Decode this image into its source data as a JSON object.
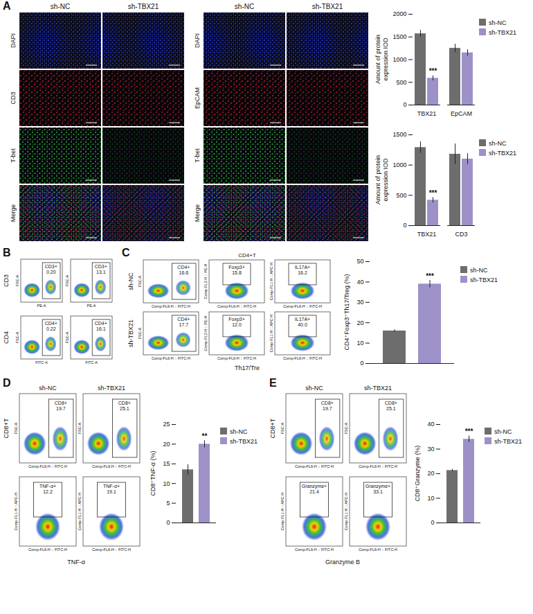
{
  "chart_data": [
    {
      "type": "bar",
      "categories": [
        "TBX21",
        "EpCAM"
      ],
      "series": [
        {
          "name": "sh-NC",
          "color": "#6d6d6d",
          "values": [
            1570,
            1250
          ],
          "errors": [
            75,
            90
          ],
          "significance": [
            null,
            null
          ]
        },
        {
          "name": "sh-TBX21",
          "color": "#9d91c8",
          "values": [
            590,
            1150
          ],
          "errors": [
            55,
            70
          ],
          "significance": [
            "***",
            null
          ]
        }
      ],
      "ylabel": "Amount of protein expression IOD",
      "ylim": [
        0,
        2000
      ],
      "yticks": [
        0,
        500,
        1000,
        1500,
        2000
      ],
      "grid": false,
      "legend": "right"
    },
    {
      "type": "bar",
      "categories": [
        "TBX21",
        "CD3"
      ],
      "series": [
        {
          "name": "sh-NC",
          "color": "#6d6d6d",
          "values": [
            1290,
            1180
          ],
          "errors": [
            95,
            170
          ],
          "significance": [
            null,
            null
          ]
        },
        {
          "name": "sh-TBX21",
          "color": "#9d91c8",
          "values": [
            420,
            1100
          ],
          "errors": [
            45,
            90
          ],
          "significance": [
            "***",
            null
          ]
        }
      ],
      "ylabel": "Amount of protein expression IOD",
      "ylim": [
        0,
        1500
      ],
      "yticks": [
        0,
        500,
        1000,
        1500
      ],
      "grid": false,
      "legend": "right"
    },
    {
      "type": "bar",
      "categories": [
        "sh-NC",
        "sh-TBX21"
      ],
      "values": [
        16,
        39
      ],
      "errors": [
        0.6,
        1.8
      ],
      "significance": [
        null,
        "***"
      ],
      "colors": [
        "#6d6d6d",
        "#9d91c8"
      ],
      "ylabel": "CD4⁺Foxp3⁺Th17/Treg (%)",
      "ylim": [
        0,
        50
      ],
      "yticks": [
        0,
        10,
        20,
        30,
        40,
        50
      ],
      "grid": false,
      "legend": "right",
      "tick_labels": "y"
    },
    {
      "type": "bar",
      "categories": [
        "sh-NC",
        "sh-TBX21"
      ],
      "values": [
        13.5,
        20
      ],
      "errors": [
        1.3,
        0.9
      ],
      "significance": [
        null,
        "**"
      ],
      "colors": [
        "#6d6d6d",
        "#9d91c8"
      ],
      "ylabel": "CD8⁺TNF-α (%)",
      "ylim": [
        0,
        25
      ],
      "yticks": [
        0,
        5,
        10,
        15,
        20,
        25
      ],
      "grid": false,
      "legend": "right",
      "tick_labels": "y"
    },
    {
      "type": "bar",
      "categories": [
        "sh-NC",
        "sh-TBX21"
      ],
      "values": [
        21.3,
        34
      ],
      "errors": [
        0.5,
        1.3
      ],
      "significance": [
        null,
        "***"
      ],
      "colors": [
        "#6d6d6d",
        "#9d91c8"
      ],
      "ylabel": "CD8⁺Granzyme (%)",
      "ylim": [
        0,
        40
      ],
      "yticks": [
        0,
        10,
        20,
        30,
        40
      ],
      "grid": false,
      "legend": "right",
      "tick_labels": "y"
    }
  ],
  "panels": {
    "A": {
      "letter": "A",
      "image_groups": [
        {
          "columns": [
            "sh-NC",
            "sh-TBX21"
          ],
          "rows": [
            "DAPI",
            "CD3",
            "T-bet",
            "Merge"
          ]
        },
        {
          "columns": [
            "sh-NC",
            "sh-TBX21"
          ],
          "rows": [
            "DAPI",
            "EpCAM",
            "T-bet",
            "Merge"
          ]
        }
      ]
    },
    "B": {
      "letter": "B",
      "rows": [
        {
          "label": "CD3",
          "plots": [
            {
              "x_label": "PE-A",
              "y_label": "FSC-A",
              "gate": "CD3+",
              "value": 0.2,
              "value_label": "0.20"
            },
            {
              "x_label": "PE-A",
              "y_label": "FSC-A",
              "gate": "CD3+",
              "value": 13.1
            }
          ]
        },
        {
          "label": "CD4",
          "plots": [
            {
              "x_label": "FITC-A",
              "y_label": "FSC-A",
              "gate": "CD4+",
              "value": 0.22
            },
            {
              "x_label": "FITC-A",
              "y_label": "FSC-A",
              "gate": "CD4+",
              "value": 16.1
            }
          ]
        }
      ]
    },
    "C": {
      "letter": "C",
      "title": "CD4+T",
      "x_label": "Th17/Tre",
      "rows": [
        {
          "label": "sh-NC",
          "plots": [
            {
              "x_label": "Comp-FL6-H :: FITC-H",
              "y_label": "FSC-A",
              "gate": "CD4+",
              "value": 16.6
            },
            {
              "x_label": "Comp-FL6-H :: FITC-H",
              "y_label": "Comp-FL2-H :: PE-H",
              "gate": "Foxp3+",
              "value": 15.8
            },
            {
              "x_label": "Comp-FL6-H :: FITC-H",
              "y_label": "Comp-FL1-H :: APC-H",
              "gate": "IL17A+",
              "value": 16.2
            }
          ]
        },
        {
          "label": "sh-TBX21",
          "plots": [
            {
              "x_label": "Comp-FL6-H :: FITC-H",
              "y_label": "FSC-A",
              "gate": "CD4+",
              "value": 17.7
            },
            {
              "x_label": "Comp-FL6-H :: FITC-H",
              "y_label": "Comp-FL2-H :: PE-H",
              "gate": "Foxp3+",
              "value": 12.0,
              "value_label": "12.0"
            },
            {
              "x_label": "Comp-FL6-H :: FITC-H",
              "y_label": "Comp-FL1-H :: APC-H",
              "gate": "IL17A+",
              "value": 40.0,
              "value_label": "40.0"
            }
          ]
        }
      ]
    },
    "D": {
      "letter": "D",
      "columns": [
        "sh-NC",
        "sh-TBX21"
      ],
      "row_label": "CD8+T",
      "x_label": "TNF-α",
      "rows": [
        {
          "plots": [
            {
              "x_label": "Comp-FL6-H :: FITC-H",
              "y_label": "FSC-A",
              "gate": "CD8+",
              "value": 19.7
            },
            {
              "x_label": "Comp-FL6-H :: FITC-H",
              "y_label": "FSC-A",
              "gate": "CD8+",
              "value": 25.1
            }
          ]
        },
        {
          "plots": [
            {
              "x_label": "Comp-FL6-H :: FITC-H",
              "y_label": "Comp-FL1-H :: APC-H",
              "gate": "TNF-α+",
              "value": 12.2
            },
            {
              "x_label": "Comp-FL6-H :: FITC-H",
              "y_label": "Comp-FL1-H :: APC-H",
              "gate": "TNF-α+",
              "value": 19.1
            }
          ]
        }
      ]
    },
    "E": {
      "letter": "E",
      "columns": [
        "sh-NC",
        "sh-TBX21"
      ],
      "row_label": "CD8+T",
      "x_label": "Granzyme B",
      "rows": [
        {
          "plots": [
            {
              "x_label": "Comp-FL6-H :: FITC-H",
              "y_label": "FSC-A",
              "gate": "CD8+",
              "value": 19.7
            },
            {
              "x_label": "Comp-FL6-H :: FITC-H",
              "y_label": "FSC-A",
              "gate": "CD8+",
              "value": 25.1
            }
          ]
        },
        {
          "plots": [
            {
              "x_label": "Comp-FL6-H :: FITC-H",
              "y_label": "Comp-FL1-H :: APC-H",
              "gate": "Granzyme+",
              "value": 21.4
            },
            {
              "x_label": "Comp-FL6-H :: FITC-H",
              "y_label": "Comp-FL1-H :: APC-H",
              "gate": "Granzyme+",
              "value": 33.1
            }
          ]
        }
      ]
    }
  }
}
